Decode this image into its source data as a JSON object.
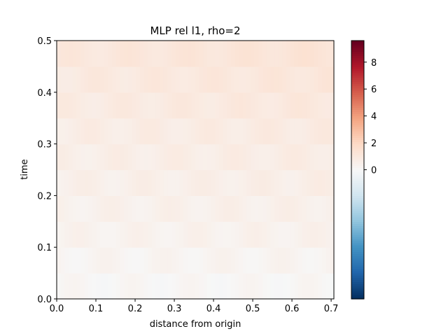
{
  "chart_data": {
    "type": "heatmap",
    "title": "MLP rel l1, rho=2",
    "xlabel": "distance from origin",
    "ylabel": "time",
    "xlim": [
      0.0,
      0.707
    ],
    "ylim": [
      0.0,
      0.5
    ],
    "x_ticks": [
      "0.0",
      "0.1",
      "0.2",
      "0.3",
      "0.4",
      "0.5",
      "0.6",
      "0.7"
    ],
    "x_tick_values": [
      0.0,
      0.1,
      0.2,
      0.3,
      0.4,
      0.5,
      0.6,
      0.7
    ],
    "y_ticks": [
      "0.0",
      "0.1",
      "0.2",
      "0.3",
      "0.4",
      "0.5"
    ],
    "y_tick_values": [
      0.0,
      0.1,
      0.2,
      0.3,
      0.4,
      0.5
    ],
    "colormap": "RdBu_r",
    "colorbar": {
      "vmin": -9.6,
      "vmax": 9.6,
      "center": 0,
      "ticks": [
        "0",
        "2",
        "4",
        "6",
        "8"
      ],
      "tick_values": [
        0,
        2,
        4,
        6,
        8
      ]
    },
    "value_summary": {
      "time_rows": [
        0.025,
        0.075,
        0.125,
        0.175,
        0.225,
        0.275,
        0.325,
        0.375,
        0.425,
        0.475
      ],
      "typical_value_by_row": [
        0.1,
        0.25,
        0.4,
        0.5,
        0.6,
        0.7,
        0.8,
        0.95,
        1.05,
        1.2
      ]
    }
  }
}
